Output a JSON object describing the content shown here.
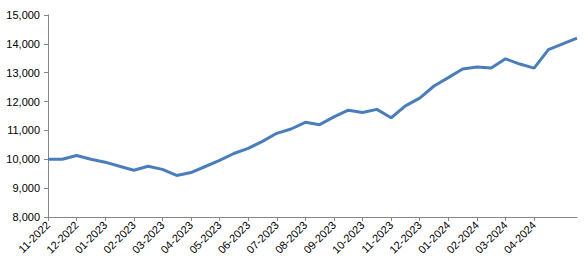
{
  "chart_data": {
    "type": "line",
    "categories": [
      "11-2022",
      null,
      "12-2022",
      null,
      "01-2023",
      null,
      "02-2023",
      null,
      "03-2023",
      null,
      "04-2023",
      null,
      "05-2023",
      null,
      "06-2023",
      null,
      "07-2023",
      null,
      "08-2023",
      null,
      "09-2023",
      null,
      "10-2023",
      null,
      "11-2023",
      null,
      "12-2023",
      null,
      "01-2024",
      null,
      "02-2024",
      null,
      "03-2024",
      null,
      "04-2024",
      null,
      null,
      null
    ],
    "values": [
      10000,
      10000,
      10130,
      10000,
      9900,
      9760,
      9620,
      9760,
      9650,
      9440,
      9540,
      9750,
      9960,
      10200,
      10380,
      10620,
      10900,
      11050,
      11280,
      11200,
      11470,
      11700,
      11620,
      11730,
      11440,
      11850,
      12120,
      12540,
      12830,
      13130,
      13200,
      13160,
      13480,
      13300,
      13160,
      13800,
      14000,
      14200
    ],
    "color": "#4a7ebb",
    "ylim": [
      8000,
      15000
    ],
    "yticks": [
      {
        "value": 8000,
        "label": "8,000"
      },
      {
        "value": 9000,
        "label": "9,000"
      },
      {
        "value": 10000,
        "label": "10,000"
      },
      {
        "value": 11000,
        "label": "11,000"
      },
      {
        "value": 12000,
        "label": "12,000"
      },
      {
        "value": 13000,
        "label": "13,000"
      },
      {
        "value": 14000,
        "label": "14,000"
      },
      {
        "value": 15000,
        "label": "15,000"
      }
    ],
    "grid": false
  }
}
